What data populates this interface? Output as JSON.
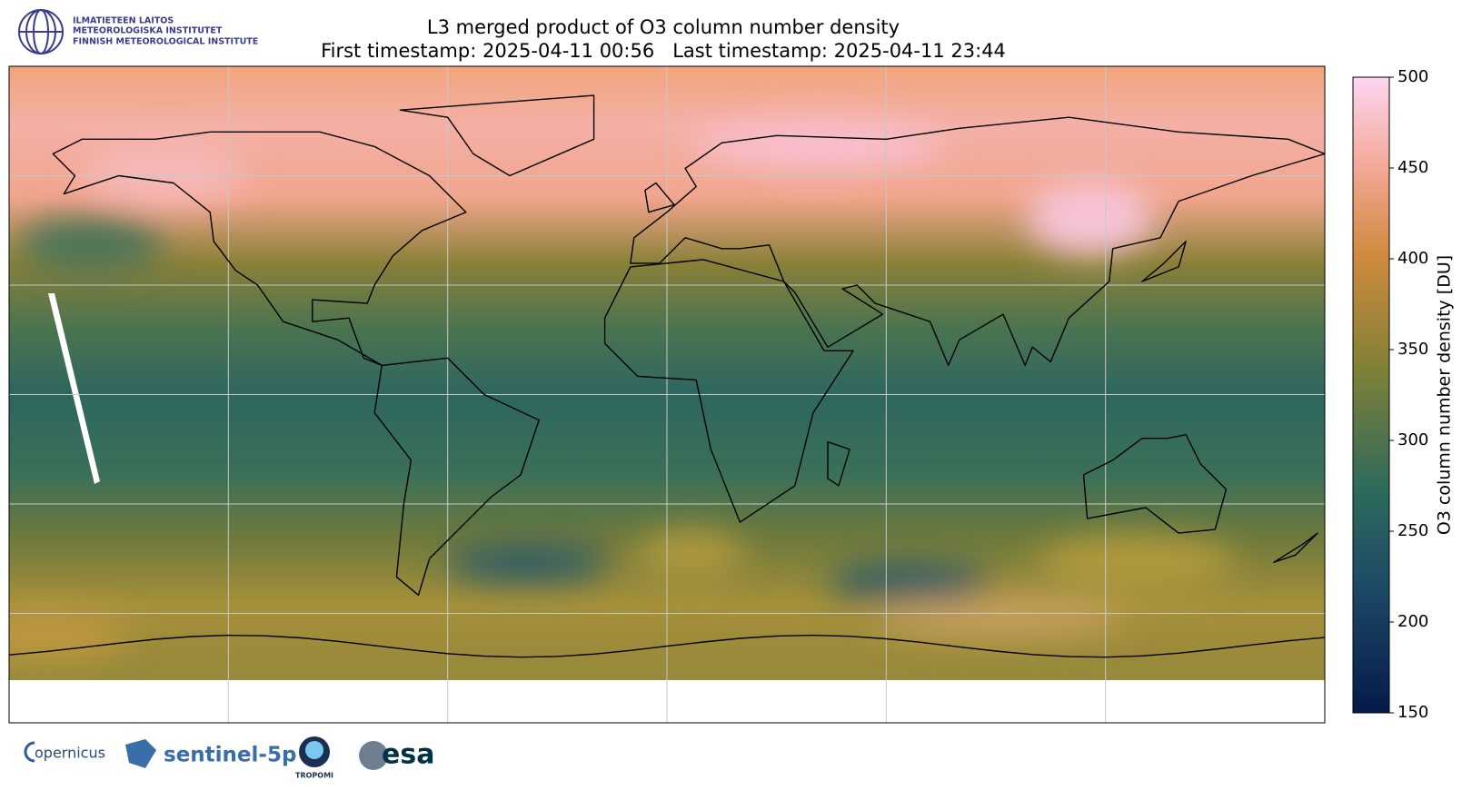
{
  "header": {
    "institute": [
      "ILMATIETEEN LAITOS",
      "METEOROLOGISKA INSTITUTET",
      "FINNISH METEOROLOGICAL INSTITUTE"
    ],
    "title": "L3 merged product of O3 column number density",
    "subtitle": "First timestamp: 2025-04-11 00:56   Last timestamp: 2025-04-11 23:44"
  },
  "colorbar": {
    "label": "O3 column number density [DU]",
    "lim": [
      150,
      500
    ],
    "ticks": [
      150,
      200,
      250,
      300,
      350,
      400,
      450,
      500
    ]
  },
  "footer": {
    "logos": [
      "opernicus",
      "sentinel-5p",
      "TROPOMI",
      "esa"
    ]
  }
}
